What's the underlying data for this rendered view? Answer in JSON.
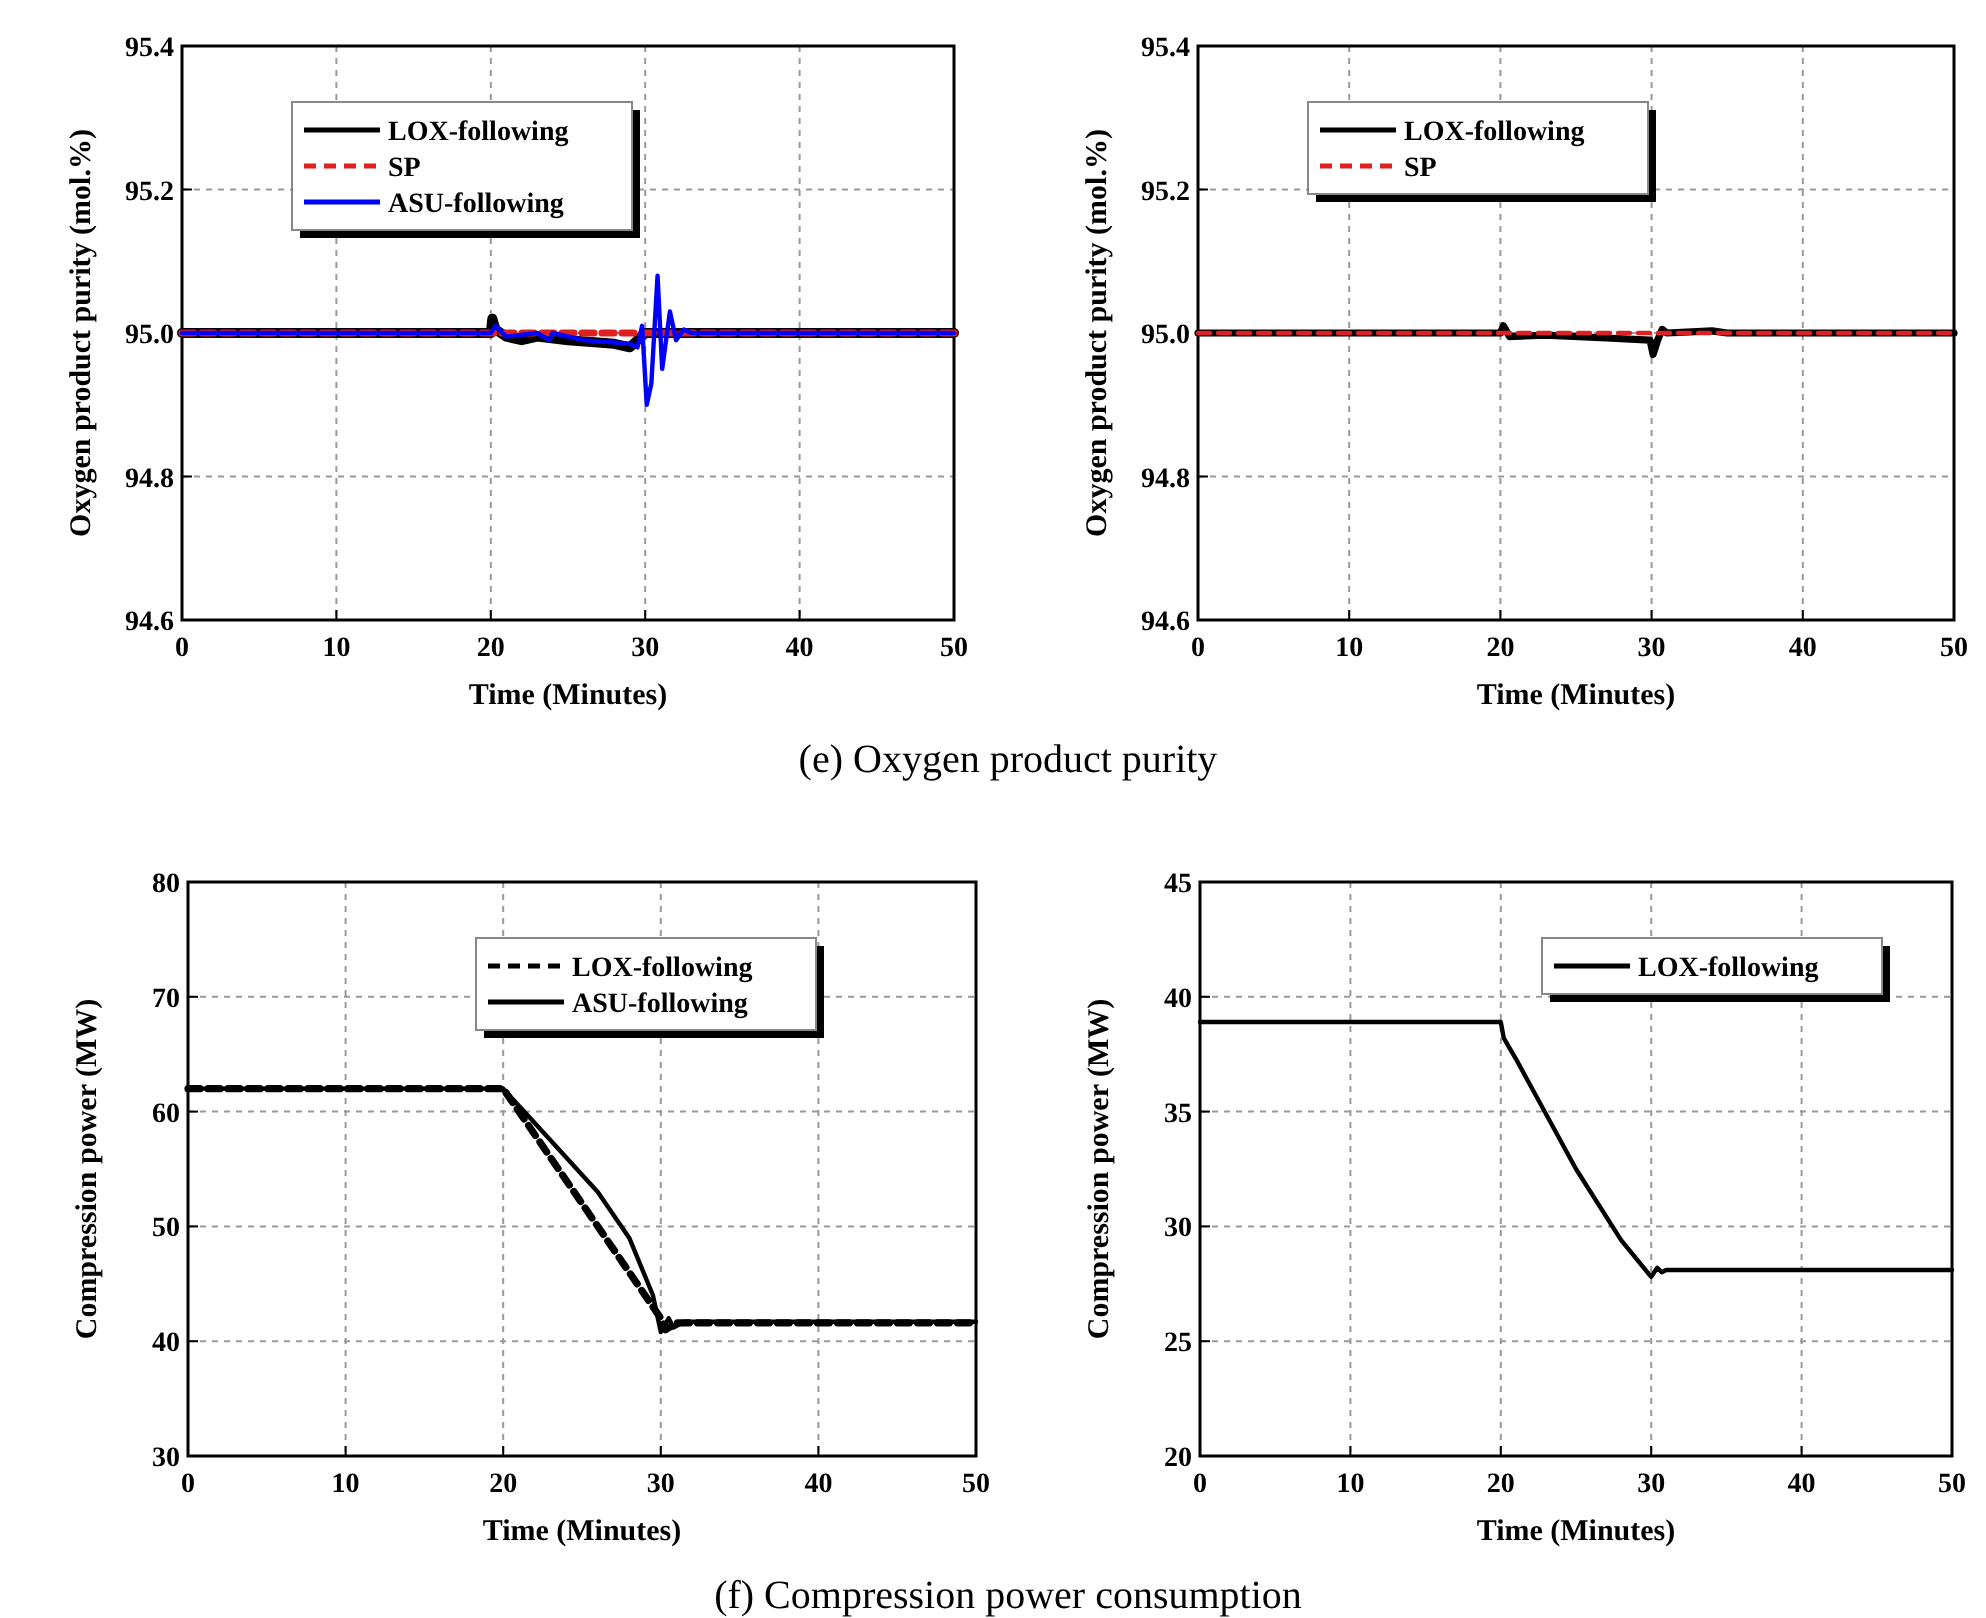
{
  "chart_data": [
    {
      "type": "line",
      "xlabel": "Time (Minutes)",
      "ylabel": "Oxygen product purity (mol.%)",
      "xlim": [
        0,
        50
      ],
      "ylim": [
        94.6,
        95.4
      ],
      "xticks": [
        0,
        10,
        20,
        30,
        40,
        50
      ],
      "yticks": [
        {
          "value": 94.6,
          "label": "94.6"
        },
        {
          "value": 94.8,
          "label": "94.8"
        },
        {
          "value": 95.0,
          "label": "95.0"
        },
        {
          "value": 95.2,
          "label": "95.2"
        },
        {
          "value": 95.4,
          "label": "95.4"
        }
      ],
      "grid": true,
      "legend": "top left",
      "annotations": [
        "(e) Oxygen product purity"
      ],
      "series": [
        {
          "name": "LOX-following",
          "color": "#000000",
          "line_style": "solid",
          "x": [
            0,
            20,
            20.1,
            20.3,
            21,
            22,
            23,
            25,
            28,
            29,
            29.5,
            30,
            31,
            50
          ],
          "values": [
            95.0,
            95.0,
            95.02,
            95.005,
            94.995,
            94.99,
            94.995,
            94.99,
            94.985,
            94.98,
            94.99,
            95.0,
            95.0,
            95.0
          ]
        },
        {
          "name": "SP",
          "color": "#e02020",
          "line_style": "dashed",
          "x": [
            0,
            50
          ],
          "values": [
            95.0,
            95.0
          ]
        },
        {
          "name": "ASU-following",
          "color": "#0000ff",
          "line_style": "solid",
          "x": [
            0,
            20,
            20.3,
            21,
            23,
            23.8,
            24,
            26,
            29,
            29.5,
            29.8,
            30.1,
            30.4,
            30.8,
            31.1,
            31.6,
            32,
            32.5,
            33,
            50
          ],
          "values": [
            95.0,
            95.0,
            95.01,
            94.995,
            95.0,
            94.99,
            95.0,
            94.99,
            94.985,
            94.98,
            95.01,
            94.9,
            94.93,
            95.08,
            94.95,
            95.03,
            94.99,
            95.005,
            95.0,
            95.0
          ]
        }
      ]
    },
    {
      "type": "line",
      "xlabel": "Time (Minutes)",
      "ylabel": "Oxygen product purity (mol.%)",
      "xlim": [
        0,
        50
      ],
      "ylim": [
        94.6,
        95.4
      ],
      "xticks": [
        0,
        10,
        20,
        30,
        40,
        50
      ],
      "yticks": [
        {
          "value": 94.6,
          "label": "94.6"
        },
        {
          "value": 94.8,
          "label": "94.8"
        },
        {
          "value": 95.0,
          "label": "95.0"
        },
        {
          "value": 95.2,
          "label": "95.2"
        },
        {
          "value": 95.4,
          "label": "95.4"
        }
      ],
      "grid": true,
      "legend": "top left",
      "series": [
        {
          "name": "LOX-following",
          "color": "#000000",
          "line_style": "solid",
          "x": [
            0,
            20,
            20.2,
            20.6,
            23,
            27,
            29.9,
            30.1,
            30.4,
            30.7,
            31,
            34,
            35,
            50
          ],
          "values": [
            95.0,
            95.0,
            95.01,
            94.995,
            94.997,
            94.993,
            94.99,
            94.97,
            94.99,
            95.005,
            95.0,
            95.003,
            95.0,
            95.0
          ]
        },
        {
          "name": "SP",
          "color": "#e02020",
          "line_style": "dashed",
          "x": [
            0,
            50
          ],
          "values": [
            95.0,
            95.0
          ]
        }
      ]
    },
    {
      "type": "line",
      "xlabel": "Time (Minutes)",
      "ylabel": "Compression power (MW)",
      "xlim": [
        0,
        50
      ],
      "ylim": [
        30,
        80
      ],
      "xticks": [
        0,
        10,
        20,
        30,
        40,
        50
      ],
      "yticks": [
        30,
        40,
        50,
        60,
        70,
        80
      ],
      "grid": true,
      "legend": "top right",
      "annotations": [
        "(f) Compression power consumption"
      ],
      "series": [
        {
          "name": "LOX-following",
          "color": "#000000",
          "line_style": "dashed",
          "x": [
            0,
            20,
            30,
            30.3,
            31,
            50
          ],
          "values": [
            62,
            62,
            42,
            41,
            41.6,
            41.6
          ]
        },
        {
          "name": "ASU-following",
          "color": "#000000",
          "line_style": "solid",
          "x": [
            0,
            20,
            22,
            24,
            26,
            28,
            29.5,
            30,
            30.5,
            30.8,
            31.5,
            50
          ],
          "values": [
            62,
            62,
            59,
            56,
            53,
            49,
            44,
            40.8,
            42,
            41.2,
            41.7,
            41.7
          ]
        }
      ]
    },
    {
      "type": "line",
      "xlabel": "Time (Minutes)",
      "ylabel": "Compression power (MW)",
      "xlim": [
        0,
        50
      ],
      "ylim": [
        20,
        45
      ],
      "xticks": [
        0,
        10,
        20,
        30,
        40,
        50
      ],
      "yticks": [
        20,
        25,
        30,
        35,
        40,
        45
      ],
      "grid": true,
      "legend": "top right",
      "series": [
        {
          "name": "LOX-following",
          "color": "#000000",
          "line_style": "solid",
          "x": [
            0,
            20,
            20.2,
            21,
            25,
            28,
            30,
            30.4,
            30.7,
            31,
            50
          ],
          "values": [
            38.9,
            38.9,
            38.2,
            37.3,
            32.5,
            29.4,
            27.8,
            28.2,
            28.0,
            28.1,
            28.1
          ]
        }
      ]
    }
  ]
}
